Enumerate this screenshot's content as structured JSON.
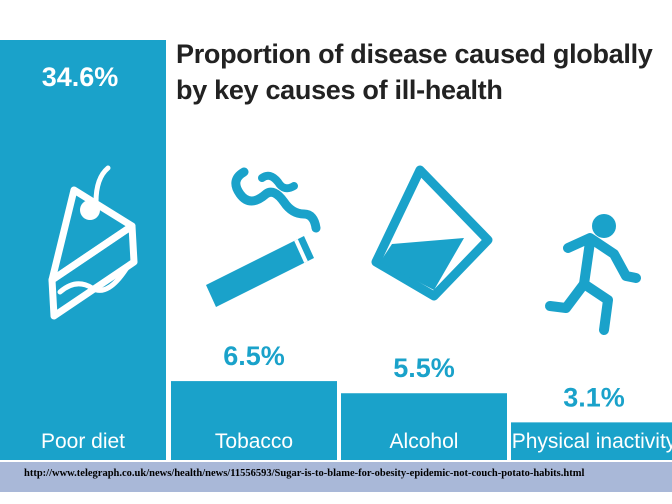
{
  "chart_data": {
    "type": "bar",
    "title": "Proportion of disease caused globally by key causes of ill-health",
    "categories": [
      "Poor diet",
      "Tobacco",
      "Alcohol",
      "Physical inactivity"
    ],
    "values": [
      34.6,
      6.5,
      5.5,
      3.1
    ],
    "value_labels": [
      "34.6%",
      "6.5%",
      "5.5%",
      "3.1%"
    ],
    "icons": [
      "cake-slice-icon",
      "cigarette-icon",
      "glass-icon",
      "runner-icon"
    ],
    "colors": {
      "bar": "#1aa2ca",
      "bar_text": "#ffffff",
      "value_text": "#1aa2ca",
      "icon": "#1aa2ca"
    },
    "ylim": [
      0,
      34.6
    ],
    "grid": false,
    "legend": "none"
  },
  "source": {
    "url": "http://www.telegraph.co.uk/news/health/news/11556593/Sugar-is-to-blame-for-obesity-epidemic-not-couch-potato-habits.html"
  }
}
